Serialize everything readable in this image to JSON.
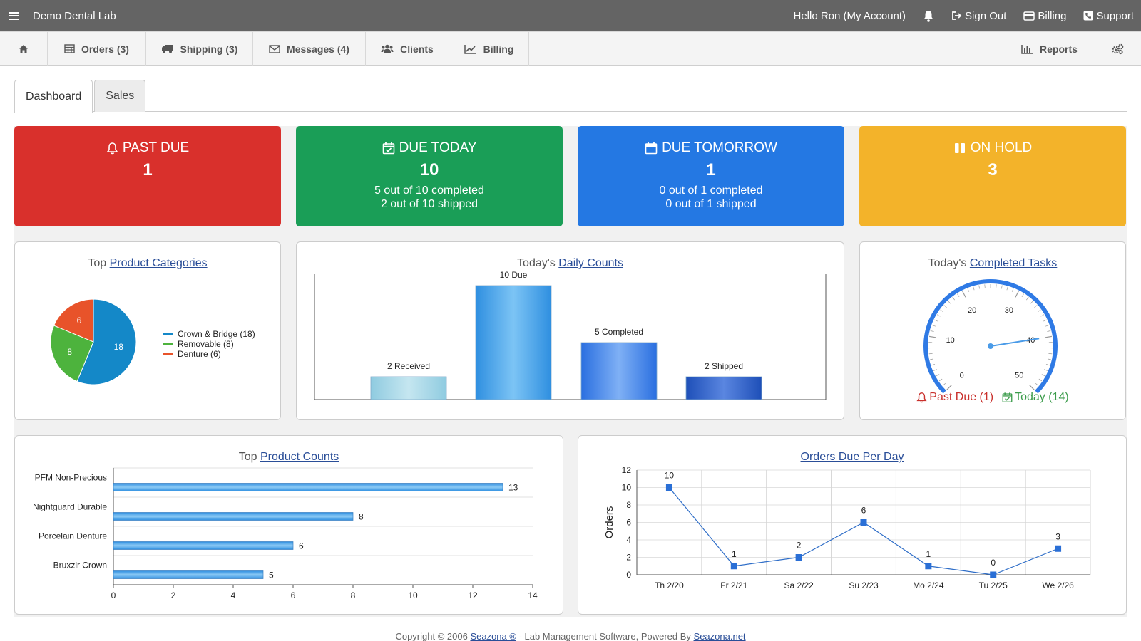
{
  "topbar": {
    "brand": "Demo Dental Lab",
    "greeting": "Hello Ron (My Account)",
    "sign_out": "Sign Out",
    "billing": "Billing",
    "support": "Support"
  },
  "nav": {
    "orders": "Orders (3)",
    "shipping": "Shipping (3)",
    "messages": "Messages (4)",
    "clients": "Clients",
    "billing": "Billing",
    "reports": "Reports"
  },
  "tabs": {
    "dashboard": "Dashboard",
    "sales": "Sales"
  },
  "cards": {
    "past_due": {
      "title": "PAST DUE",
      "value": "1",
      "color": "#d9302c"
    },
    "due_today": {
      "title": "DUE TODAY",
      "value": "10",
      "line1": "5 out of 10 completed",
      "line2": "2 out of 10 shipped",
      "color": "#1a9e57"
    },
    "due_tomorrow": {
      "title": "DUE TOMORROW",
      "value": "1",
      "line1": "0 out of 1 completed",
      "line2": "0 out of 1 shipped",
      "color": "#2478e3"
    },
    "on_hold": {
      "title": "ON HOLD",
      "value": "3",
      "color": "#f3b32a"
    }
  },
  "categories_panel": {
    "prefix": "Top ",
    "link": "Product Categories"
  },
  "daily_panel": {
    "prefix": "Today's ",
    "link": "Daily Counts"
  },
  "tasks_panel": {
    "prefix": "Today's ",
    "link": "Completed Tasks",
    "past_due": "Past Due (1)",
    "today": "Today (14)",
    "gauge_value": 40,
    "gauge_ticks": [
      "0",
      "10",
      "20",
      "30",
      "40",
      "50"
    ]
  },
  "counts_panel": {
    "prefix": "Top ",
    "link": "Product Counts"
  },
  "perday_panel": {
    "link": "Orders Due Per Day"
  },
  "chart_data": [
    {
      "type": "pie",
      "categories": [
        "Crown & Bridge (18)",
        "Removable (8)",
        "Denture (6)"
      ],
      "values": [
        18,
        8,
        6
      ],
      "colors": [
        "#1488c8",
        "#4db33d",
        "#e8532a"
      ]
    },
    {
      "type": "bar",
      "categories": [
        "2 Received",
        "10 Due",
        "5 Completed",
        "2 Shipped"
      ],
      "values": [
        2,
        10,
        5,
        2
      ],
      "ylim": [
        0,
        11
      ]
    },
    {
      "type": "bar",
      "orientation": "horizontal",
      "categories": [
        "PFM Non-Precious",
        "Nightguard Durable",
        "Porcelain Denture",
        "Bruxzir Crown"
      ],
      "values": [
        13,
        8,
        6,
        5
      ],
      "xlim": [
        0,
        14
      ],
      "xticks": [
        "0",
        "2",
        "4",
        "6",
        "8",
        "10",
        "12",
        "14"
      ]
    },
    {
      "type": "line",
      "x": [
        "Th 2/20",
        "Fr 2/21",
        "Sa 2/22",
        "Su 2/23",
        "Mo 2/24",
        "Tu 2/25",
        "We 2/26"
      ],
      "values": [
        10,
        1,
        2,
        6,
        1,
        0,
        3
      ],
      "ylabel": "Orders",
      "ylim": [
        0,
        12
      ],
      "yticks": [
        "0",
        "2",
        "4",
        "6",
        "8",
        "10",
        "12"
      ]
    }
  ],
  "footer": {
    "pre": "Copyright © 2006 ",
    "link1": "Seazona ®",
    "mid": " - Lab Management Software, Powered By ",
    "link2": "Seazona.net"
  }
}
